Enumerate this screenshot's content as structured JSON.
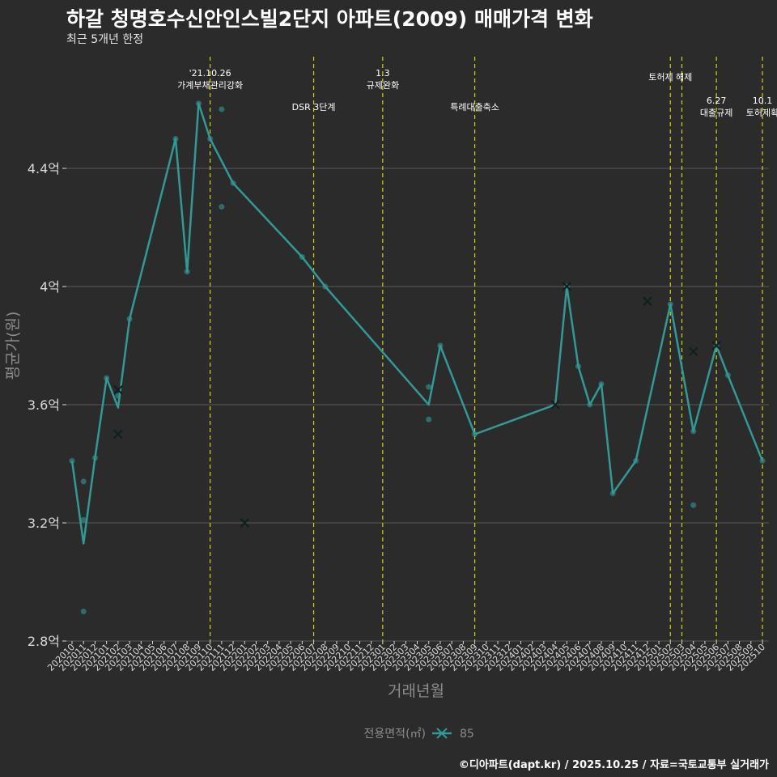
{
  "title": "하갈 청명호수신안인스빌2단지 아파트(2009) 매매가격 변화",
  "subtitle": "최근 5개년 한정",
  "caption": "©디아파트(dapt.kr) / 2025.10.25 / 자료=국토교통부 실거래가",
  "colors": {
    "background": "#2b2b2c",
    "series": "#2f9a96",
    "grid": "#5a5a5a",
    "vline": "#d4d400",
    "text": "#ffffff",
    "axis_text": "#d9d9d9",
    "muted": "#8c8c8c"
  },
  "chart_data": {
    "type": "line",
    "xlabel": "거래년월",
    "ylabel": "평균가(원)",
    "ylim": [
      2.8,
      4.8
    ],
    "yticks": [
      2.8,
      3.2,
      3.6,
      4.0,
      4.4
    ],
    "ytick_labels": [
      "2.8억",
      "3.2억",
      "3.6억",
      "4억",
      "4.4억"
    ],
    "categories": [
      "202010",
      "202011",
      "202012",
      "202101",
      "202102",
      "202103",
      "202104",
      "202105",
      "202106",
      "202107",
      "202108",
      "202109",
      "202110",
      "202111",
      "202112",
      "202201",
      "202202",
      "202203",
      "202204",
      "202205",
      "202206",
      "202207",
      "202208",
      "202209",
      "202210",
      "202211",
      "202212",
      "202301",
      "202302",
      "202303",
      "202304",
      "202305",
      "202306",
      "202307",
      "202308",
      "202309",
      "202310",
      "202311",
      "202312",
      "202401",
      "202402",
      "202403",
      "202404",
      "202405",
      "202406",
      "202407",
      "202408",
      "202409",
      "202410",
      "202411",
      "202412",
      "202501",
      "202502",
      "202503",
      "202504",
      "202505",
      "202506",
      "202507",
      "202508",
      "202509",
      "202510"
    ],
    "legend": {
      "title": "전용면적(㎡)",
      "label": "85"
    },
    "series": [
      {
        "name": "85",
        "line": [
          [
            "202010",
            3.41
          ],
          [
            "202011",
            3.13
          ],
          [
            "202012",
            3.42
          ],
          [
            "202101",
            3.69
          ],
          [
            "202102",
            3.59
          ],
          [
            "202103",
            3.89
          ],
          [
            "202107",
            4.5
          ],
          [
            "202108",
            4.05
          ],
          [
            "202109",
            4.62
          ],
          [
            "202110",
            4.5
          ],
          [
            "202112",
            4.35
          ],
          [
            "202206",
            4.1
          ],
          [
            "202208",
            4.0
          ],
          [
            "202305",
            3.6
          ],
          [
            "202306",
            3.8
          ],
          [
            "202309",
            3.5
          ],
          [
            "202404",
            3.6
          ],
          [
            "202405",
            4.0
          ],
          [
            "202406",
            3.73
          ],
          [
            "202407",
            3.6
          ],
          [
            "202408",
            3.67
          ],
          [
            "202409",
            3.3
          ],
          [
            "202411",
            3.41
          ],
          [
            "202502",
            3.94
          ],
          [
            "202504",
            3.51
          ],
          [
            "202506",
            3.8
          ],
          [
            "202507",
            3.7
          ],
          [
            "202510",
            3.41
          ]
        ],
        "points": [
          [
            "202010",
            3.41
          ],
          [
            "202011",
            3.34
          ],
          [
            "202011",
            3.21
          ],
          [
            "202011",
            2.9
          ],
          [
            "202012",
            3.42
          ],
          [
            "202101",
            3.69
          ],
          [
            "202102",
            3.63
          ],
          [
            "202103",
            3.89
          ],
          [
            "202107",
            4.5
          ],
          [
            "202108",
            4.05
          ],
          [
            "202109",
            4.62
          ],
          [
            "202110",
            4.5
          ],
          [
            "202111",
            4.6
          ],
          [
            "202111",
            4.27
          ],
          [
            "202112",
            4.35
          ],
          [
            "202206",
            4.1
          ],
          [
            "202208",
            4.0
          ],
          [
            "202305",
            3.66
          ],
          [
            "202305",
            3.55
          ],
          [
            "202306",
            3.8
          ],
          [
            "202309",
            3.5
          ],
          [
            "202405",
            4.0
          ],
          [
            "202406",
            3.73
          ],
          [
            "202407",
            3.6
          ],
          [
            "202408",
            3.67
          ],
          [
            "202409",
            3.3
          ],
          [
            "202411",
            3.41
          ],
          [
            "202502",
            3.94
          ],
          [
            "202504",
            3.26
          ],
          [
            "202504",
            3.51
          ],
          [
            "202506",
            3.8
          ],
          [
            "202507",
            3.7
          ],
          [
            "202510",
            3.41
          ]
        ],
        "markers": [
          [
            "202102",
            3.65
          ],
          [
            "202102",
            3.5
          ],
          [
            "202201",
            3.2
          ],
          [
            "202404",
            3.6
          ],
          [
            "202405",
            4.0
          ],
          [
            "202412",
            3.95
          ],
          [
            "202504",
            3.78
          ],
          [
            "202506",
            3.8
          ]
        ]
      }
    ],
    "events": [
      {
        "month": "202110",
        "lines": [
          "'21.10.26",
          "가계부채관리강화"
        ],
        "row": 0
      },
      {
        "month": "202207",
        "lines": [
          "DSR 3단계"
        ],
        "row": 2
      },
      {
        "month": "202301",
        "lines": [
          "1.3",
          "규제완화"
        ],
        "row": 0
      },
      {
        "month": "202309",
        "lines": [
          "특례대출축소"
        ],
        "row": 2
      },
      {
        "month": "202502",
        "lines": [
          "토허제 해제"
        ],
        "row": 1
      },
      {
        "month": "202503",
        "lines": [],
        "row": 1
      },
      {
        "month": "202506",
        "lines": [
          "6.27",
          "대출규제"
        ],
        "row": 3
      },
      {
        "month": "202510",
        "lines": [
          "10.1",
          "토허제확"
        ],
        "row": 3
      }
    ]
  }
}
